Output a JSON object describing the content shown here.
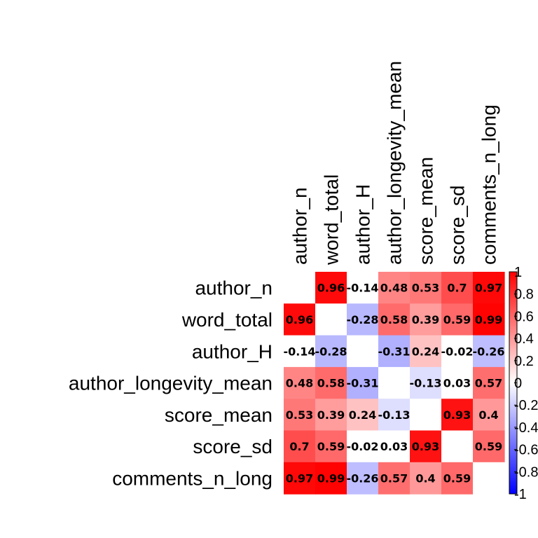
{
  "chart_data": {
    "type": "heatmap",
    "title": "",
    "variables": [
      "author_n",
      "word_total",
      "author_H",
      "author_longevity_mean",
      "score_mean",
      "score_sd",
      "comments_n_long"
    ],
    "matrix": [
      [
        null,
        0.96,
        -0.14,
        0.48,
        0.53,
        0.7,
        0.97
      ],
      [
        0.96,
        null,
        -0.28,
        0.58,
        0.39,
        0.59,
        0.99
      ],
      [
        -0.14,
        -0.28,
        null,
        -0.31,
        0.24,
        -0.02,
        -0.26
      ],
      [
        0.48,
        0.58,
        -0.31,
        null,
        -0.13,
        0.03,
        0.57
      ],
      [
        0.53,
        0.39,
        0.24,
        -0.13,
        null,
        0.93,
        0.4
      ],
      [
        0.7,
        0.59,
        -0.02,
        0.03,
        0.93,
        null,
        0.59
      ],
      [
        0.97,
        0.99,
        -0.26,
        0.57,
        0.4,
        0.59,
        null
      ]
    ],
    "cell_labels": [
      [
        "",
        "0.96",
        "-0.14",
        "0.48",
        "0.53",
        "0.7",
        "0.97"
      ],
      [
        "0.96",
        "",
        "-0.28",
        "0.58",
        "0.39",
        "0.59",
        "0.99"
      ],
      [
        "-0.14",
        "-0.28",
        "",
        "-0.31",
        "0.24",
        "-0.02",
        "-0.26"
      ],
      [
        "0.48",
        "0.58",
        "-0.31",
        "",
        "-0.13",
        "0.03",
        "0.57"
      ],
      [
        "0.53",
        "0.39",
        "0.24",
        "-0.13",
        "",
        "0.93",
        "0.4"
      ],
      [
        "0.7",
        "0.59",
        "-0.02",
        "0.03",
        "0.93",
        "",
        "0.59"
      ],
      [
        "0.97",
        "0.99",
        "-0.26",
        "0.57",
        "0.4",
        "0.59",
        ""
      ]
    ],
    "insignificant_blank": [
      [
        0,
        2
      ],
      [
        2,
        0
      ],
      [
        2,
        5
      ],
      [
        5,
        2
      ],
      [
        3,
        5
      ],
      [
        5,
        3
      ]
    ],
    "color_scale": {
      "range": [
        -1,
        1
      ],
      "low": "#0000FF",
      "mid": "#FFFFFF",
      "high": "#FF0000",
      "ticks": [
        -1,
        -0.8,
        -0.6,
        -0.4,
        -0.2,
        0,
        0.2,
        0.4,
        0.6,
        0.8,
        1
      ],
      "tick_labels": [
        "-1",
        "-0.8",
        "-0.6",
        "-0.4",
        "-0.2",
        "0",
        "0.2",
        "0.4",
        "0.6",
        "0.8",
        "1"
      ]
    },
    "legend_position": "right"
  }
}
